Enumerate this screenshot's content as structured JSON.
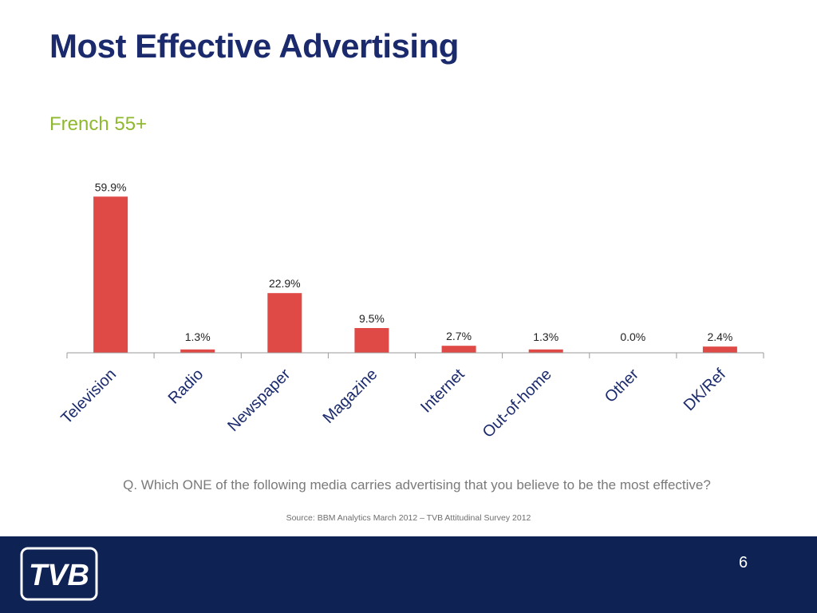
{
  "slide": {
    "title": "Most Effective Advertising",
    "subtitle": "French 55+",
    "question": "Q. Which ONE of the following media carries advertising that you believe to be the most effective?",
    "source": "Source: BBM Analytics March 2012 – TVB Attitudinal Survey 2012",
    "page_number": "6",
    "logo_text": "TVB"
  },
  "colors": {
    "title": "#1a2a6c",
    "subtitle": "#8fb82e",
    "bar": "#e04a46",
    "axis_label": "#1a2a6c",
    "footer_bg": "#0e2254"
  },
  "chart_data": {
    "type": "bar",
    "categories": [
      "Television",
      "Radio",
      "Newspaper",
      "Magazine",
      "Internet",
      "Out-of-home",
      "Other",
      "DK/Ref"
    ],
    "values": [
      59.9,
      1.3,
      22.9,
      9.5,
      2.7,
      1.3,
      0.0,
      2.4
    ],
    "data_labels": [
      "59.9%",
      "1.3%",
      "22.9%",
      "9.5%",
      "2.7%",
      "1.3%",
      "0.0%",
      "2.4%"
    ],
    "title": "",
    "xlabel": "",
    "ylabel": "",
    "ylim": [
      0,
      60
    ],
    "grid": false,
    "legend": "none"
  }
}
